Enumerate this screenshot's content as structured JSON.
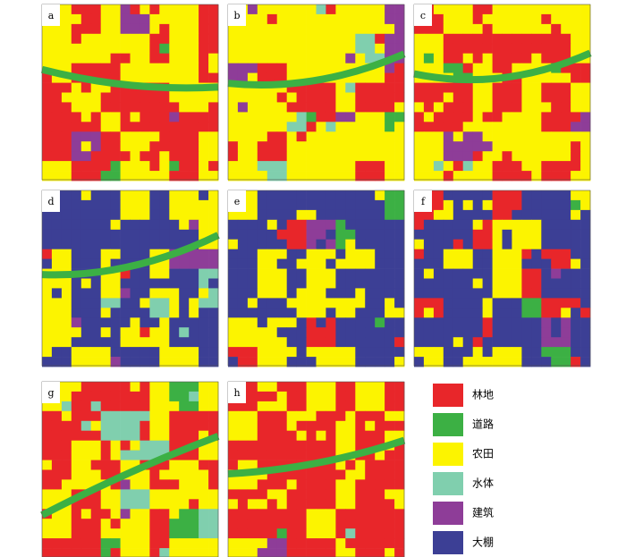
{
  "panels": [
    {
      "label": "a"
    },
    {
      "label": "b"
    },
    {
      "label": "c"
    },
    {
      "label": "d"
    },
    {
      "label": "e"
    },
    {
      "label": "f"
    },
    {
      "label": "g"
    },
    {
      "label": "h"
    }
  ],
  "legend": [
    {
      "label": "林地",
      "color": "#e8262a"
    },
    {
      "label": "道路",
      "color": "#3cb044"
    },
    {
      "label": "农田",
      "color": "#fcf400"
    },
    {
      "label": "水体",
      "color": "#80cfae"
    },
    {
      "label": "建筑",
      "color": "#8e3d98"
    },
    {
      "label": "大棚",
      "color": "#3c3f95"
    }
  ]
}
